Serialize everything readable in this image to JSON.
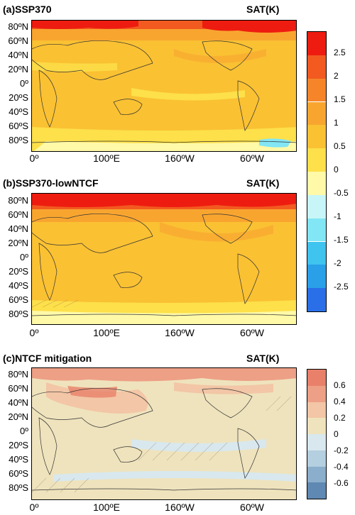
{
  "panels": [
    {
      "title": "(a)SSP370",
      "variable": "SAT(K)"
    },
    {
      "title": "(b)SSP370-lowNTCF",
      "variable": "SAT(K)"
    },
    {
      "title": "(c)NTCF mitigation",
      "variable": "SAT(K)"
    }
  ],
  "lat_labels": [
    "80ºN",
    "60ºN",
    "40ºN",
    "20ºN",
    "0º",
    "20ºS",
    "40ºS",
    "60ºS",
    "80ºS"
  ],
  "lon_labels": [
    "0º",
    "100ºE",
    "160ºW",
    "60ºW"
  ],
  "colorbar_main": {
    "labels": [
      "2.5",
      "2",
      "1.5",
      "1",
      "0.5",
      "0",
      "-0.5",
      "-1",
      "-1.5",
      "-2",
      "-2.5"
    ],
    "colors": [
      "#ee1c10",
      "#f25a20",
      "#f6852a",
      "#f8a530",
      "#fac133",
      "#fde04a",
      "#fff9a8",
      "#c8f6f8",
      "#82e6f4",
      "#3ec4ee",
      "#2aa0e8",
      "#2a6fe8"
    ]
  },
  "colorbar_diff": {
    "labels": [
      "0.6",
      "0.4",
      "0.2",
      "0",
      "-0.2",
      "-0.4",
      "-0.6"
    ],
    "colors": [
      "#e8806a",
      "#eda086",
      "#f2c6a6",
      "#efe3bd",
      "#d8e8ee",
      "#b4cfdf",
      "#8aaecb",
      "#5f88b2"
    ]
  }
}
